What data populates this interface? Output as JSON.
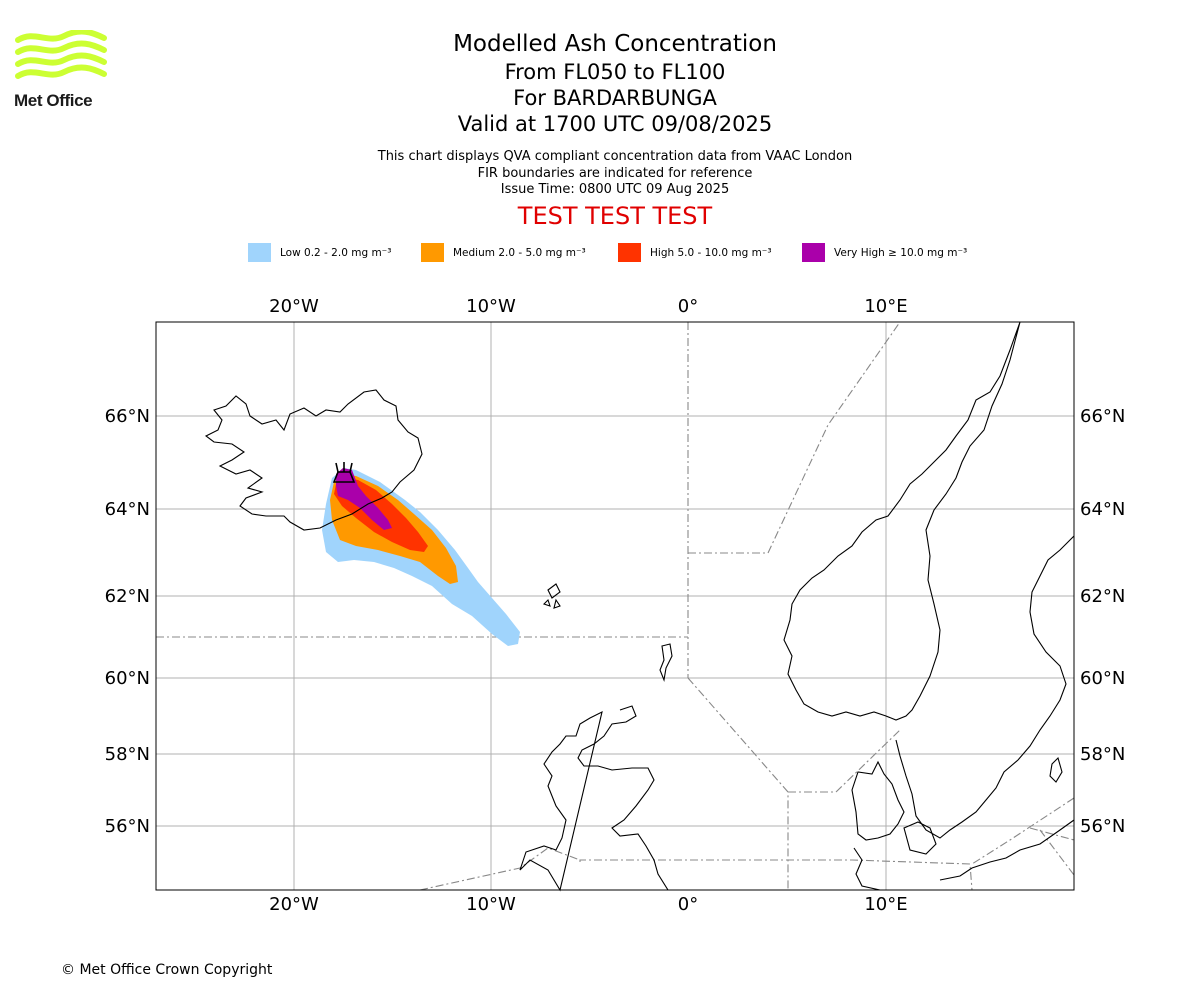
{
  "brand": {
    "name": "Met Office",
    "logo_color": "#ccff33"
  },
  "title": {
    "main": "Modelled Ash Concentration",
    "levels": "From FL050 to FL100",
    "volcano": "For BARDARBUNGA",
    "valid": "Valid at 1700 UTC 09/08/2025"
  },
  "subtitle": {
    "line1": "This chart displays QVA compliant concentration data from VAAC London",
    "line2": "FIR boundaries are indicated for reference",
    "line3": "Issue Time: 0800 UTC 09 Aug 2025"
  },
  "test_banner": "TEST TEST TEST",
  "legend": [
    {
      "label": "Low 0.2 - 2.0 mg m⁻³",
      "color": "#a0d4fc"
    },
    {
      "label": "Medium 2.0 - 5.0 mg m⁻³",
      "color": "#ff9900"
    },
    {
      "label": "High 5.0 - 10.0 mg m⁻³",
      "color": "#ff3300"
    },
    {
      "label": "Very High ≥ 10.0 mg m⁻³",
      "color": "#aa00aa"
    }
  ],
  "axes": {
    "lon_labels": [
      "20°W",
      "10°W",
      "0°",
      "10°E"
    ],
    "lat_labels": [
      "66°N",
      "64°N",
      "62°N",
      "60°N",
      "58°N",
      "56°N"
    ]
  },
  "copyright": "© Met Office Crown Copyright"
}
